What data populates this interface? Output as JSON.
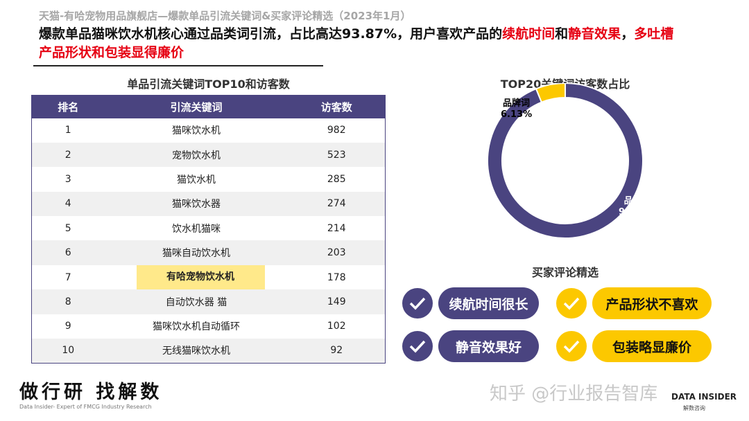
{
  "header": {
    "supertitle": "天猫-有哈宠物用品旗舰店—爆款单品引流关键词&买家评论精选（2023年1月）",
    "headline_parts": [
      {
        "text": "爆款单品猫咪饮水机核心通过品类词引流，占比高达93.87%，用户喜欢产品的",
        "red": false
      },
      {
        "text": "续航时间",
        "red": true
      },
      {
        "text": "和",
        "red": false
      },
      {
        "text": "静音效果",
        "red": true
      },
      {
        "text": "，",
        "red": false
      },
      {
        "text": "多吐槽产品形状和包装显得廉价",
        "red": true
      }
    ]
  },
  "table": {
    "title": "单品引流关键词TOP10和访客数",
    "columns": [
      "排名",
      "引流关键词",
      "访客数"
    ],
    "rows": [
      [
        "1",
        "猫咪饮水机",
        "982"
      ],
      [
        "2",
        "宠物饮水机",
        "523"
      ],
      [
        "3",
        "猫饮水机",
        "285"
      ],
      [
        "4",
        "猫咪饮水器",
        "274"
      ],
      [
        "5",
        "饮水机猫咪",
        "214"
      ],
      [
        "6",
        "猫咪自动饮水机",
        "203"
      ],
      [
        "7",
        "有哈宠物饮水机",
        "178"
      ],
      [
        "8",
        "自动饮水器 猫",
        "149"
      ],
      [
        "9",
        "猫咪饮水机自动循环",
        "102"
      ],
      [
        "10",
        "无线猫咪饮水机",
        "92"
      ]
    ],
    "highlight_row": 7
  },
  "chart_data": {
    "type": "pie",
    "title": "TOP20关键词访客数占比",
    "donut": true,
    "slices": [
      {
        "label": "品牌词",
        "value": 6.13,
        "display": "6.13%",
        "color": "#fcc800"
      },
      {
        "label": "品类词",
        "value": 93.87,
        "display": "93.87%",
        "color": "#4a4480"
      }
    ]
  },
  "reviews": {
    "title": "买家评论精选",
    "positive": [
      "续航时间很长",
      "静音效果好"
    ],
    "negative": [
      "产品形状不喜欢",
      "包装略显廉价"
    ]
  },
  "footer": {
    "slogan": "做行研 找解数",
    "slogan_sub": "Data Insider- Expert of FMCG Industry Research",
    "watermark": "知乎 @行业报告智库",
    "logo": "DATA INSIDER",
    "logo_sub": "解数咨询"
  }
}
